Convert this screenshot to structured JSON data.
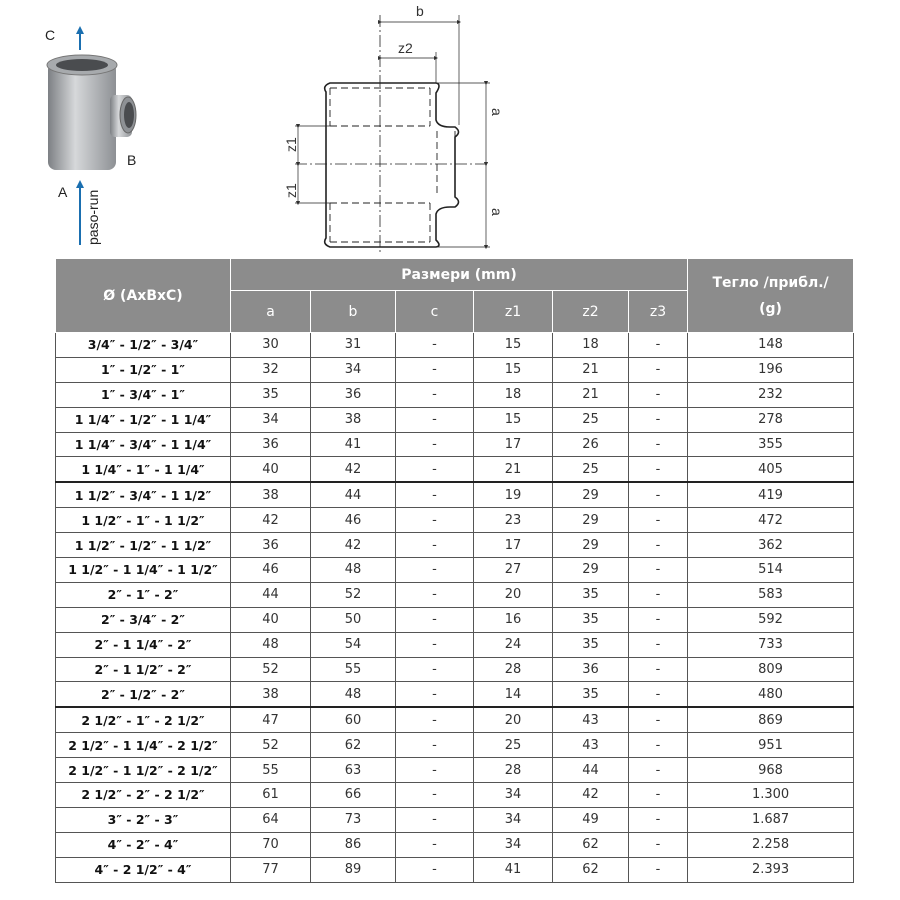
{
  "figure": {
    "photo_labels": {
      "c": "C",
      "b": "B",
      "a": "A",
      "run": "paso-run"
    },
    "drawing_labels": {
      "b": "b",
      "z2": "z2",
      "z1_top": "z1",
      "z1_bottom": "z1",
      "a_top": "a",
      "a_bottom": "a"
    },
    "arrow_color": "#1a6fb0"
  },
  "table": {
    "header": {
      "diameter": "Ø (AxBxC)",
      "dimensions": "Размери (mm)",
      "weight_line1": "Тегло /прибл./",
      "weight_line2": "(g)",
      "columns": [
        "a",
        "b",
        "c",
        "z1",
        "z2",
        "z3"
      ]
    },
    "header_color": "#8c8c8c",
    "rows": [
      [
        "3/4″ - 1/2″ - 3/4″",
        "30",
        "31",
        "-",
        "15",
        "18",
        "-",
        "148"
      ],
      [
        "1″ - 1/2″ - 1″",
        "32",
        "34",
        "-",
        "15",
        "21",
        "-",
        "196"
      ],
      [
        "1″ - 3/4″ - 1″",
        "35",
        "36",
        "-",
        "18",
        "21",
        "-",
        "232"
      ],
      [
        "1 1/4″ - 1/2″ - 1 1/4″",
        "34",
        "38",
        "-",
        "15",
        "25",
        "-",
        "278"
      ],
      [
        "1 1/4″ - 3/4″ - 1 1/4″",
        "36",
        "41",
        "-",
        "17",
        "26",
        "-",
        "355"
      ],
      [
        "1 1/4″ - 1″ - 1 1/4″",
        "40",
        "42",
        "-",
        "21",
        "25",
        "-",
        "405"
      ],
      [
        "1 1/2″ - 3/4″ - 1 1/2″",
        "38",
        "44",
        "-",
        "19",
        "29",
        "-",
        "419"
      ],
      [
        "1 1/2″ - 1″ - 1 1/2″",
        "42",
        "46",
        "-",
        "23",
        "29",
        "-",
        "472"
      ],
      [
        "1 1/2″ - 1/2″ - 1 1/2″",
        "36",
        "42",
        "-",
        "17",
        "29",
        "-",
        "362"
      ],
      [
        "1 1/2″ - 1 1/4″ - 1 1/2″",
        "46",
        "48",
        "-",
        "27",
        "29",
        "-",
        "514"
      ],
      [
        "2″ - 1″ - 2″",
        "44",
        "52",
        "-",
        "20",
        "35",
        "-",
        "583"
      ],
      [
        "2″ - 3/4″ - 2″",
        "40",
        "50",
        "-",
        "16",
        "35",
        "-",
        "592"
      ],
      [
        "2″ - 1 1/4″ - 2″",
        "48",
        "54",
        "-",
        "24",
        "35",
        "-",
        "733"
      ],
      [
        "2″ - 1 1/2″ - 2″",
        "52",
        "55",
        "-",
        "28",
        "36",
        "-",
        "809"
      ],
      [
        "2″ - 1/2″ - 2″",
        "38",
        "48",
        "-",
        "14",
        "35",
        "-",
        "480"
      ],
      [
        "2 1/2″ - 1″ - 2 1/2″",
        "47",
        "60",
        "-",
        "20",
        "43",
        "-",
        "869"
      ],
      [
        "2 1/2″ - 1 1/4″ - 2 1/2″",
        "52",
        "62",
        "-",
        "25",
        "43",
        "-",
        "951"
      ],
      [
        "2 1/2″ - 1 1/2″ - 2 1/2″",
        "55",
        "63",
        "-",
        "28",
        "44",
        "-",
        "968"
      ],
      [
        "2 1/2″ - 2″ - 2 1/2″",
        "61",
        "66",
        "-",
        "34",
        "42",
        "-",
        "1.300"
      ],
      [
        "3″ - 2″ - 3″",
        "64",
        "73",
        "-",
        "34",
        "49",
        "-",
        "1.687"
      ],
      [
        "4″ - 2″ - 4″",
        "70",
        "86",
        "-",
        "34",
        "62",
        "-",
        "2.258"
      ],
      [
        "4″ - 2 1/2″ - 4″",
        "77",
        "89",
        "-",
        "41",
        "62",
        "-",
        "2.393"
      ]
    ]
  }
}
